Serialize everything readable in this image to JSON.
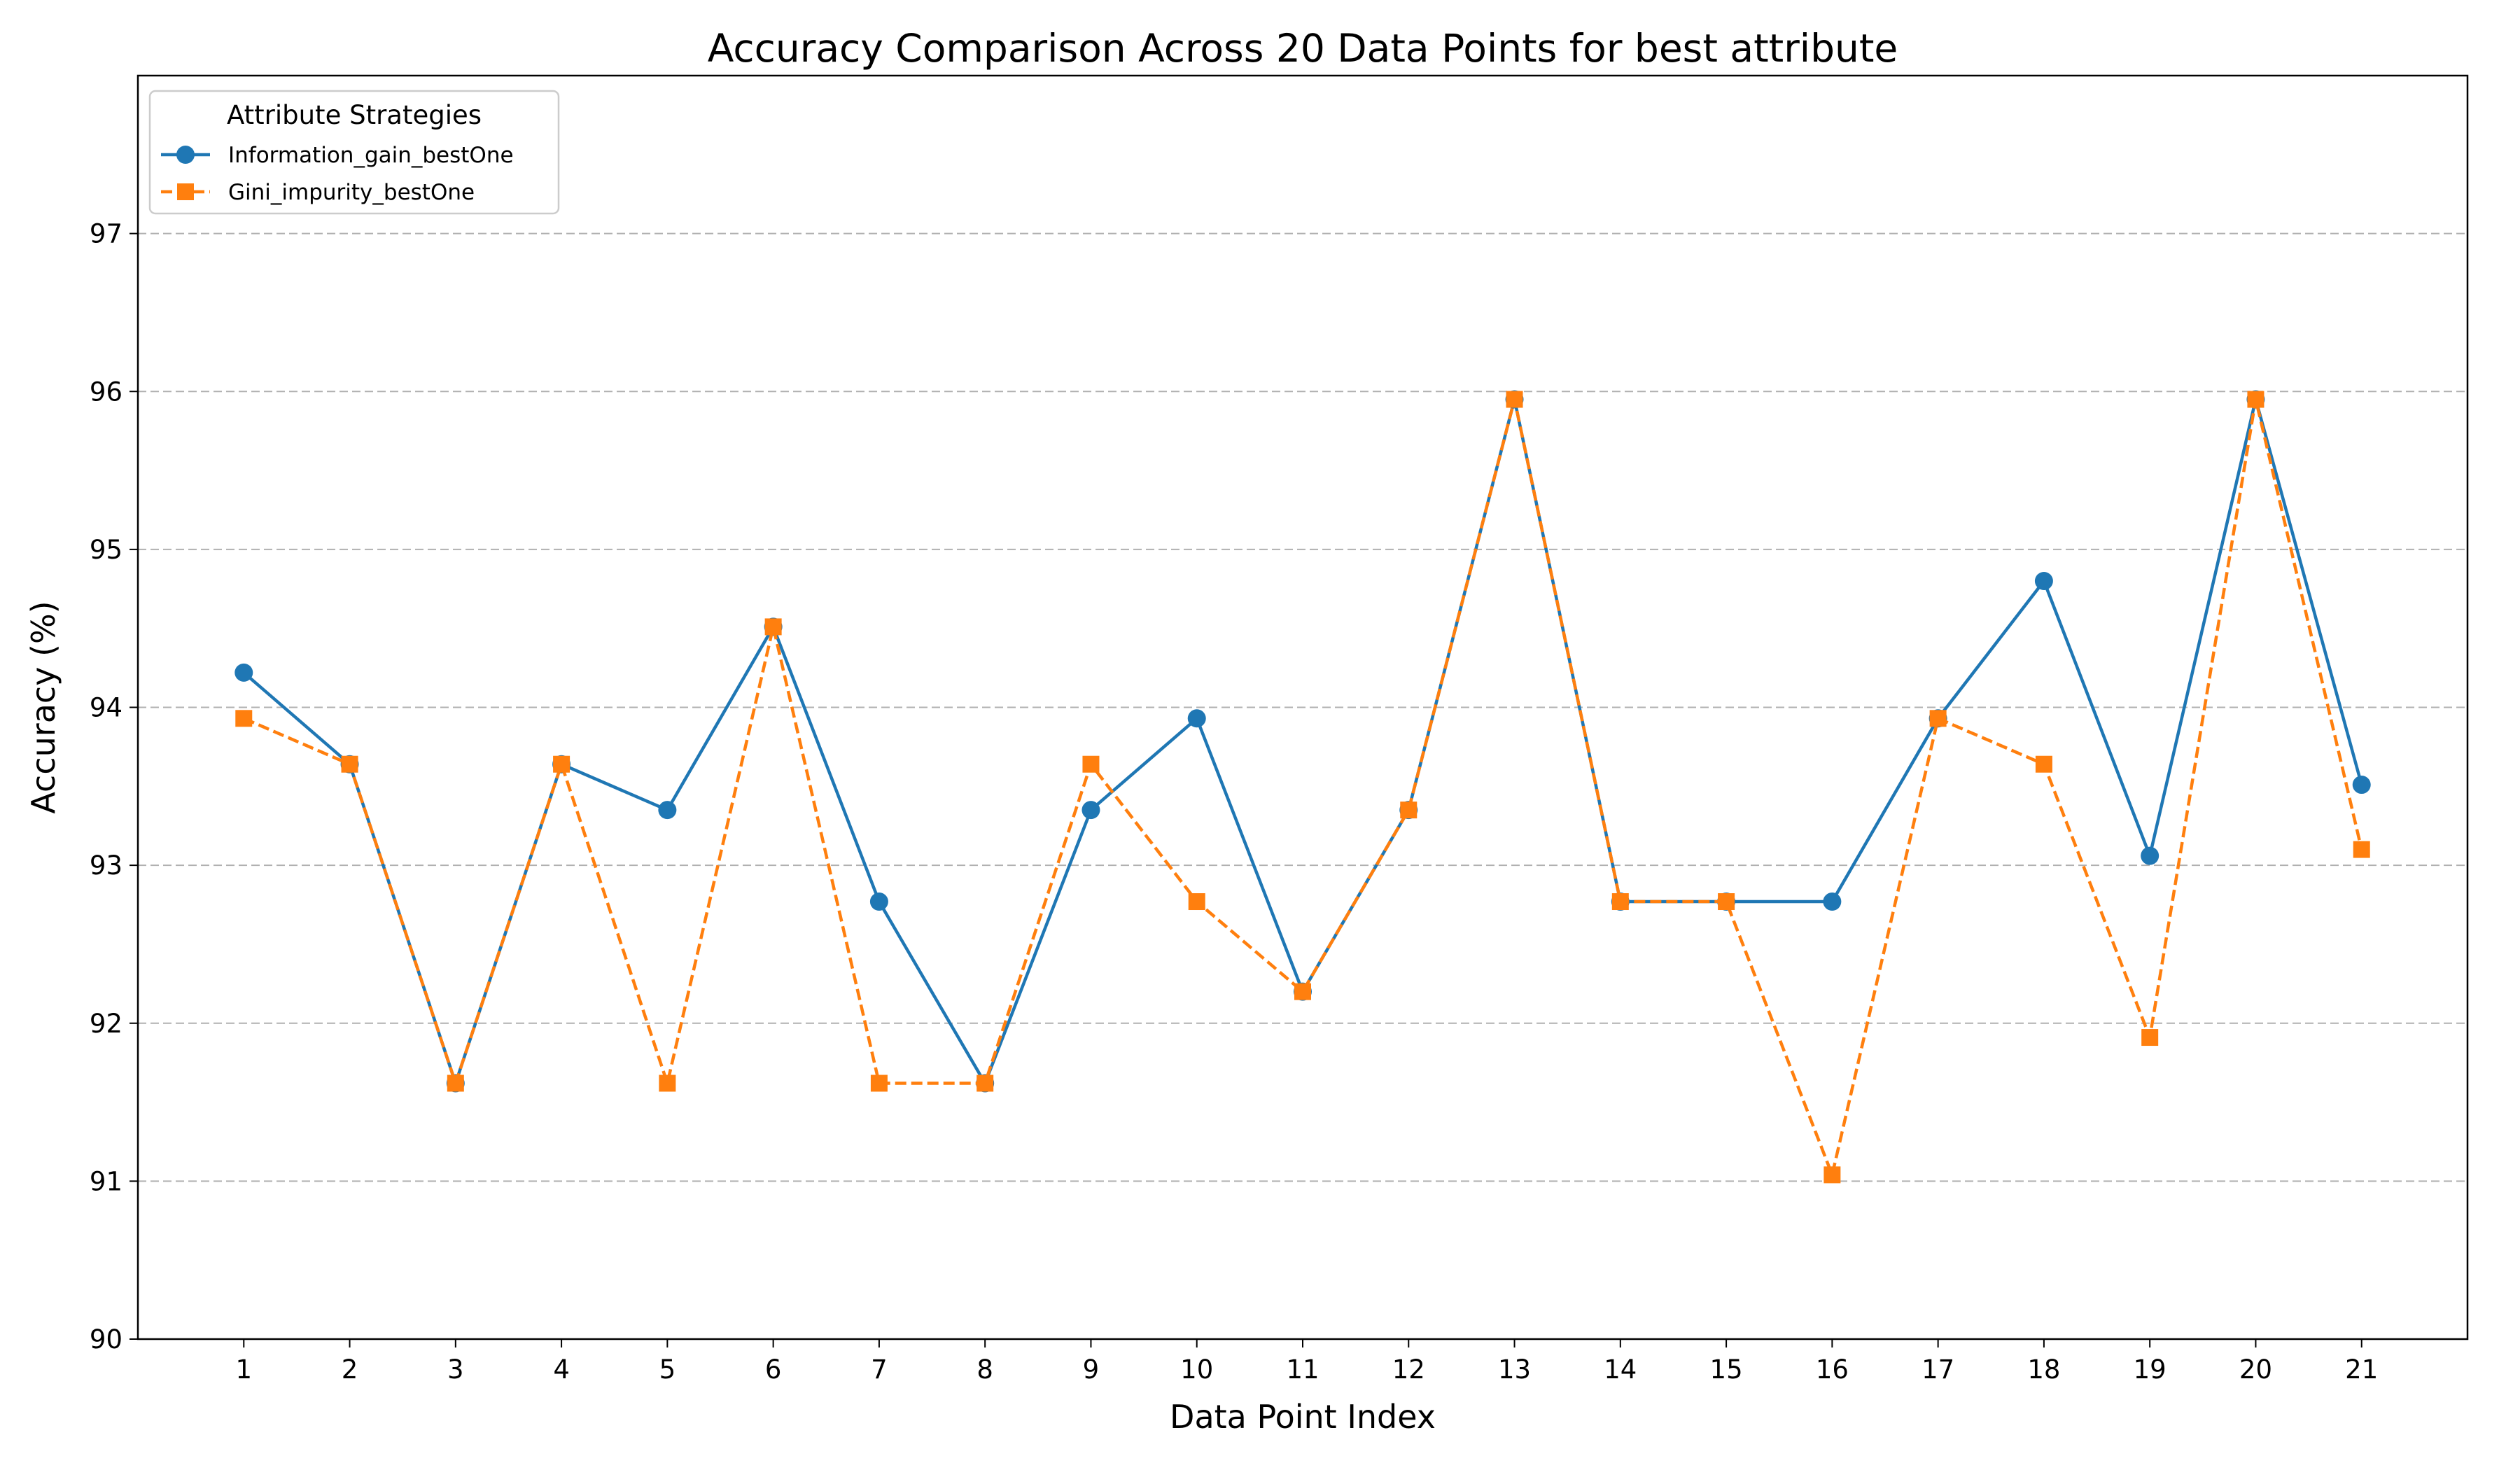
{
  "chart_data": {
    "type": "line",
    "title": "Accuracy Comparison Across 20 Data Points for best attribute",
    "xlabel": "Data Point Index",
    "ylabel": "Accuracy (%)",
    "x": [
      1,
      2,
      3,
      4,
      5,
      6,
      7,
      8,
      9,
      10,
      11,
      12,
      13,
      14,
      15,
      16,
      17,
      18,
      19,
      20,
      21
    ],
    "xlim": [
      0,
      22
    ],
    "ylim": [
      90,
      98
    ],
    "yticks": [
      90,
      91,
      92,
      93,
      94,
      95,
      96,
      97
    ],
    "grid": "y-dashed",
    "legend": {
      "title": "Attribute Strategies",
      "placement": "upper-left"
    },
    "series": [
      {
        "name": "Information_gain_bestOne",
        "color": "#1f77b4",
        "line_style": "solid",
        "marker": "circle",
        "values": [
          94.22,
          93.64,
          91.62,
          93.64,
          93.35,
          94.51,
          92.77,
          91.62,
          93.35,
          93.93,
          92.2,
          93.35,
          95.95,
          92.77,
          92.77,
          92.77,
          93.93,
          94.8,
          93.06,
          95.95,
          93.51
        ]
      },
      {
        "name": "Gini_impurity_bestOne",
        "color": "#ff7f0e",
        "line_style": "dashed",
        "marker": "square",
        "values": [
          93.93,
          93.64,
          91.62,
          93.64,
          91.62,
          94.51,
          91.62,
          91.62,
          93.64,
          92.77,
          92.2,
          93.35,
          95.95,
          92.77,
          92.77,
          91.04,
          93.93,
          93.64,
          91.91,
          95.95,
          93.1
        ]
      }
    ]
  }
}
